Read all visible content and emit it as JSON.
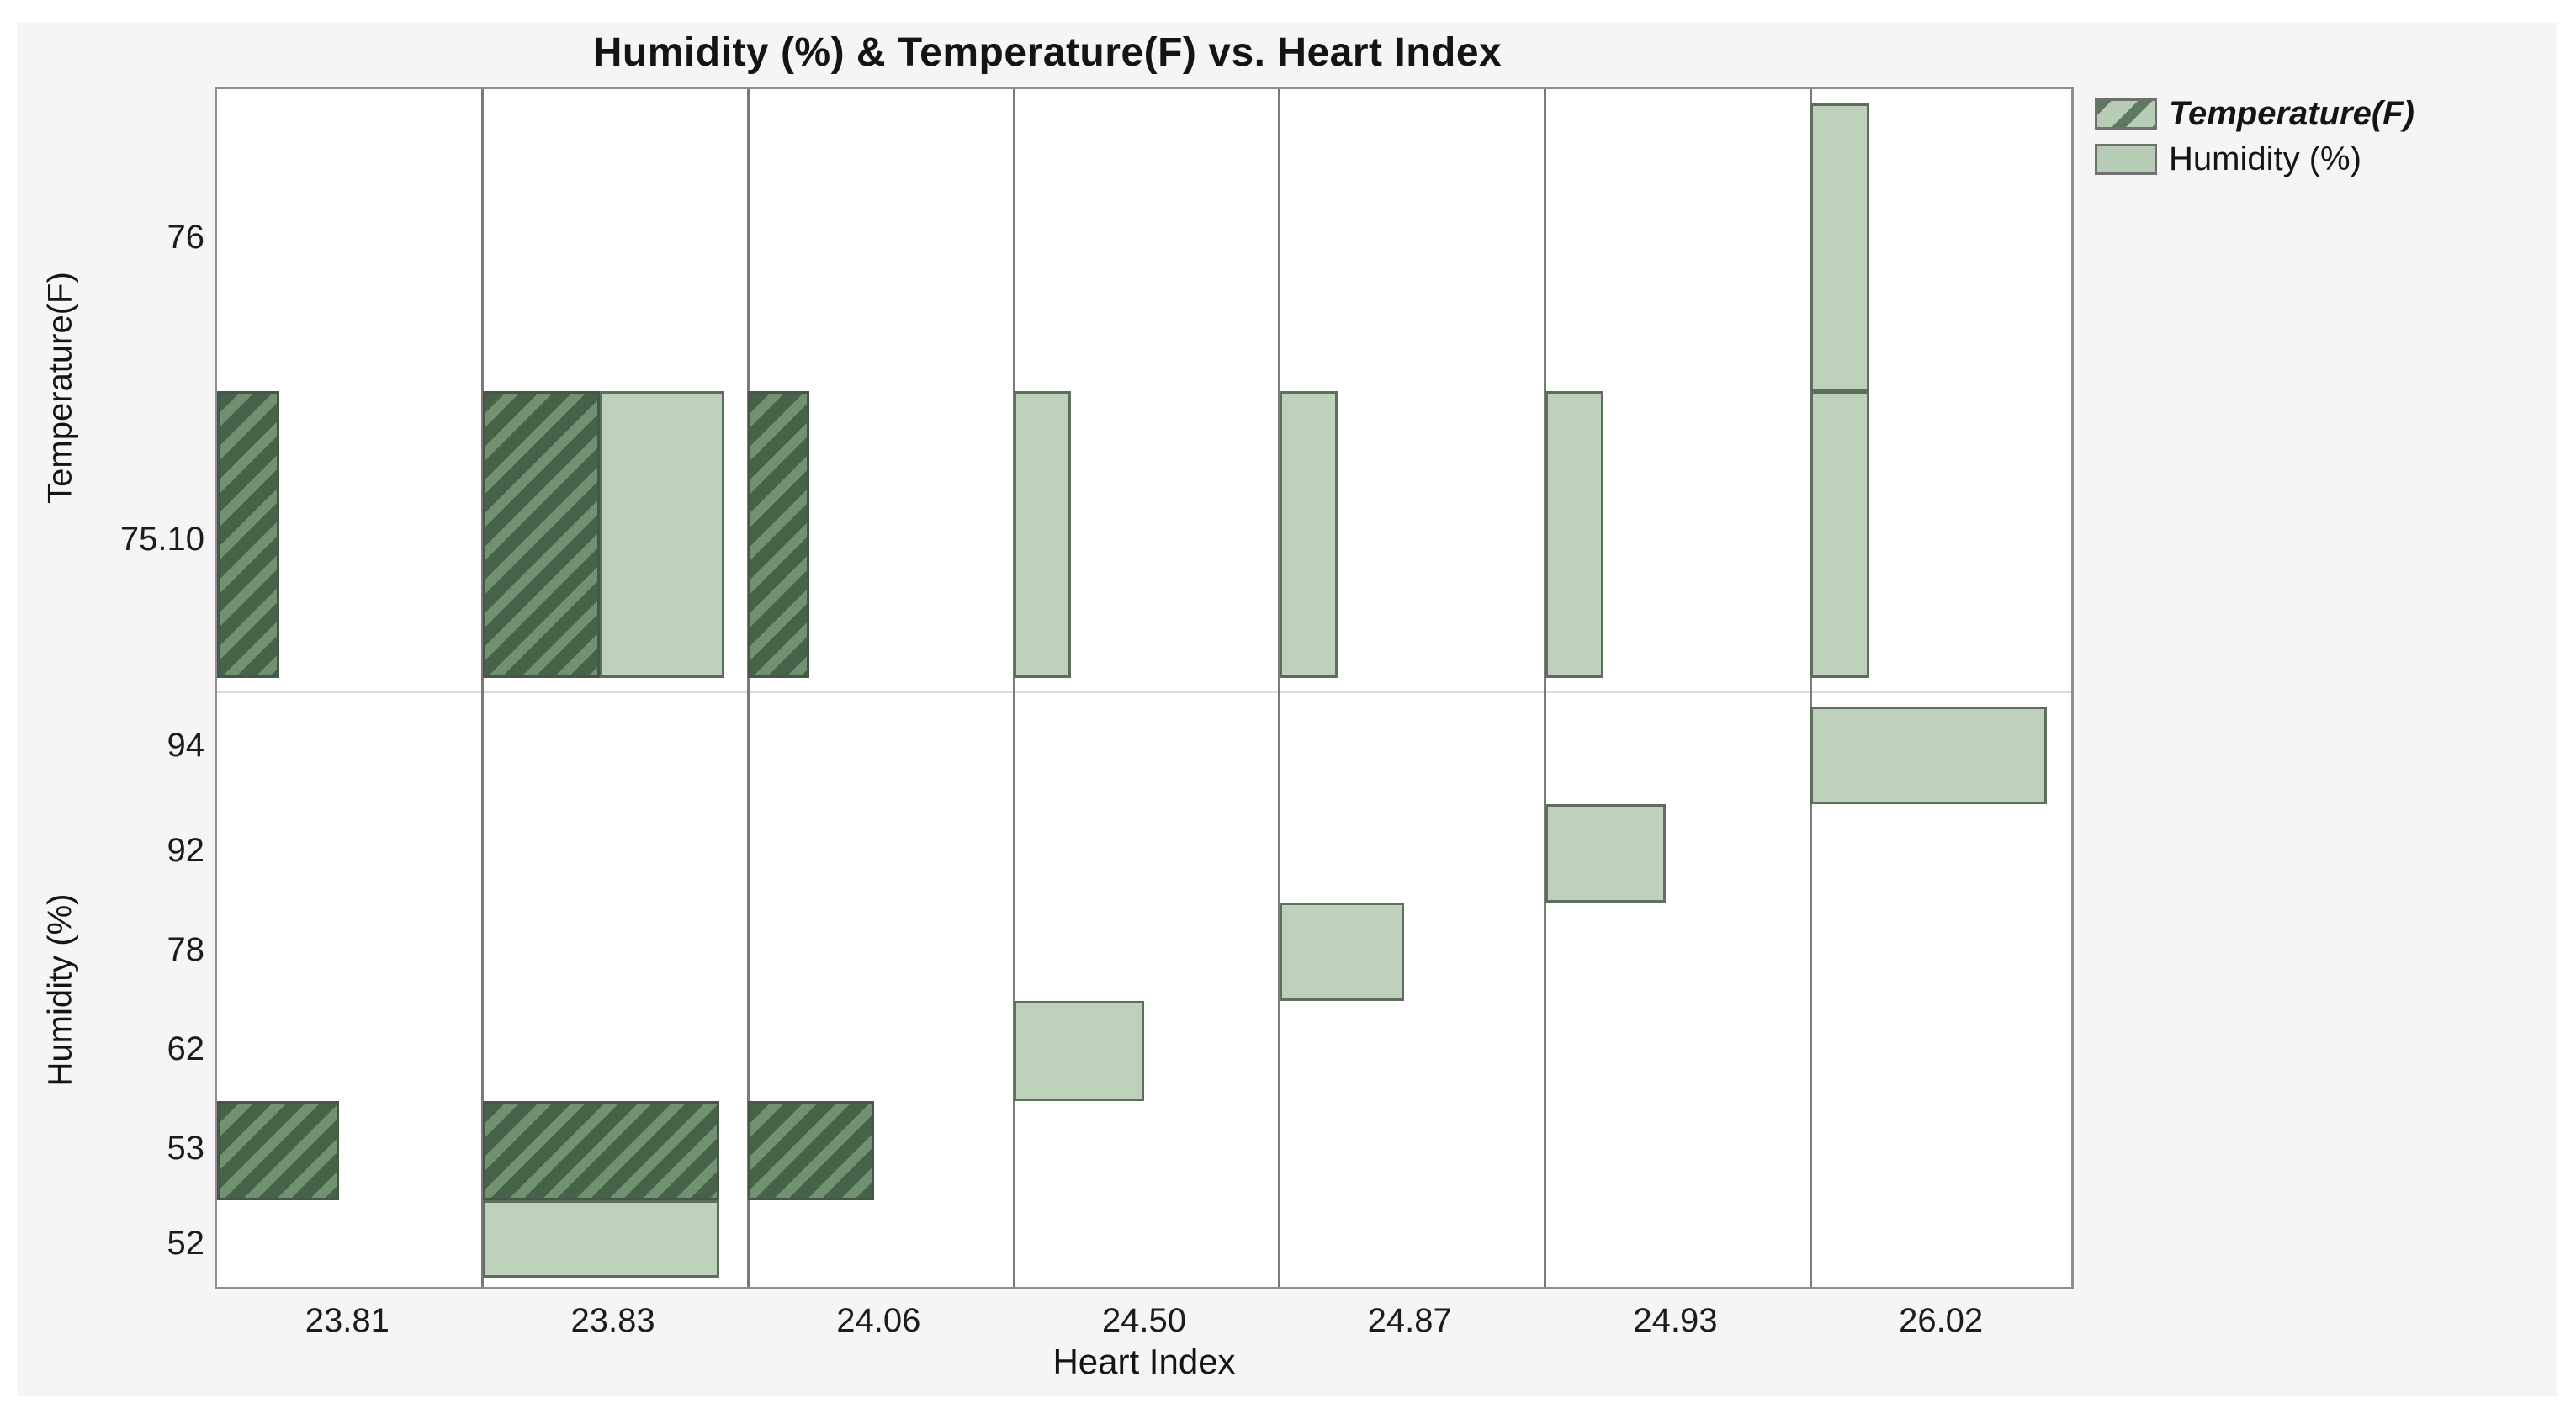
{
  "chart_data": {
    "type": "bar",
    "variant": "mosaic-categorical, two stacked panels sharing x axis",
    "title": "Humidity (%) & Temperature(F) vs. Heart Index",
    "xlabel": "Heart Index",
    "x_categories": [
      "23.81",
      "23.83",
      "24.06",
      "24.50",
      "24.87",
      "24.93",
      "26.02"
    ],
    "legend": [
      {
        "label": "Temperature(F)",
        "style": "hatched"
      },
      {
        "label": "Humidity (%)",
        "style": "solid"
      }
    ],
    "legend_position": "top-right outside plot",
    "grid": "column dividers only",
    "colors": {
      "humidity_fill": "#bed2bb",
      "humidity_border": "#5d6f5c",
      "temperature_hatch_dark": "#466349",
      "temperature_hatch_light": "#71926f",
      "temperature_border": "#49544a",
      "legend_swatch_base": "#b7ccb5",
      "legend_swatch_stripe": "#5d7a61"
    },
    "panels": [
      {
        "ylabel": "Temperature(F)",
        "y_categories": [
          "76",
          "75.10"
        ],
        "bars": [
          {
            "x": "23.81",
            "y": "75.10",
            "series": "Temperature(F)",
            "width_frac": 0.235
          },
          {
            "x": "23.83",
            "y": "75.10",
            "series": "Temperature(F)",
            "width_frac": 0.44
          },
          {
            "x": "23.83",
            "y": "75.10",
            "series": "Humidity (%)",
            "width_frac": 0.47,
            "offset_frac": 0.44
          },
          {
            "x": "24.06",
            "y": "75.10",
            "series": "Temperature(F)",
            "width_frac": 0.23
          },
          {
            "x": "24.50",
            "y": "75.10",
            "series": "Humidity (%)",
            "width_frac": 0.215
          },
          {
            "x": "24.87",
            "y": "75.10",
            "series": "Humidity (%)",
            "width_frac": 0.22
          },
          {
            "x": "24.93",
            "y": "75.10",
            "series": "Humidity (%)",
            "width_frac": 0.22
          },
          {
            "x": "26.02",
            "y": "76",
            "series": "Humidity (%)",
            "width_frac": 0.22
          },
          {
            "x": "26.02",
            "y": "75.10",
            "series": "Humidity (%)",
            "width_frac": 0.22
          }
        ]
      },
      {
        "ylabel": "Humidity (%)",
        "y_categories": [
          "94",
          "92",
          "78",
          "62",
          "53",
          "52"
        ],
        "bars": [
          {
            "x": "23.81",
            "y": "53",
            "series": "Temperature(F)",
            "width_frac": 0.46
          },
          {
            "x": "23.83",
            "y": "53",
            "series": "Temperature(F)",
            "width_frac": 0.89
          },
          {
            "x": "23.83",
            "y": "52",
            "series": "Humidity (%)",
            "width_frac": 0.89
          },
          {
            "x": "24.06",
            "y": "53",
            "series": "Temperature(F)",
            "width_frac": 0.475
          },
          {
            "x": "24.50",
            "y": "62",
            "series": "Humidity (%)",
            "width_frac": 0.49
          },
          {
            "x": "24.87",
            "y": "78",
            "series": "Humidity (%)",
            "width_frac": 0.47
          },
          {
            "x": "24.93",
            "y": "92",
            "series": "Humidity (%)",
            "width_frac": 0.455
          },
          {
            "x": "26.02",
            "y": "94",
            "series": "Humidity (%)",
            "width_frac": 0.89
          }
        ]
      }
    ]
  }
}
